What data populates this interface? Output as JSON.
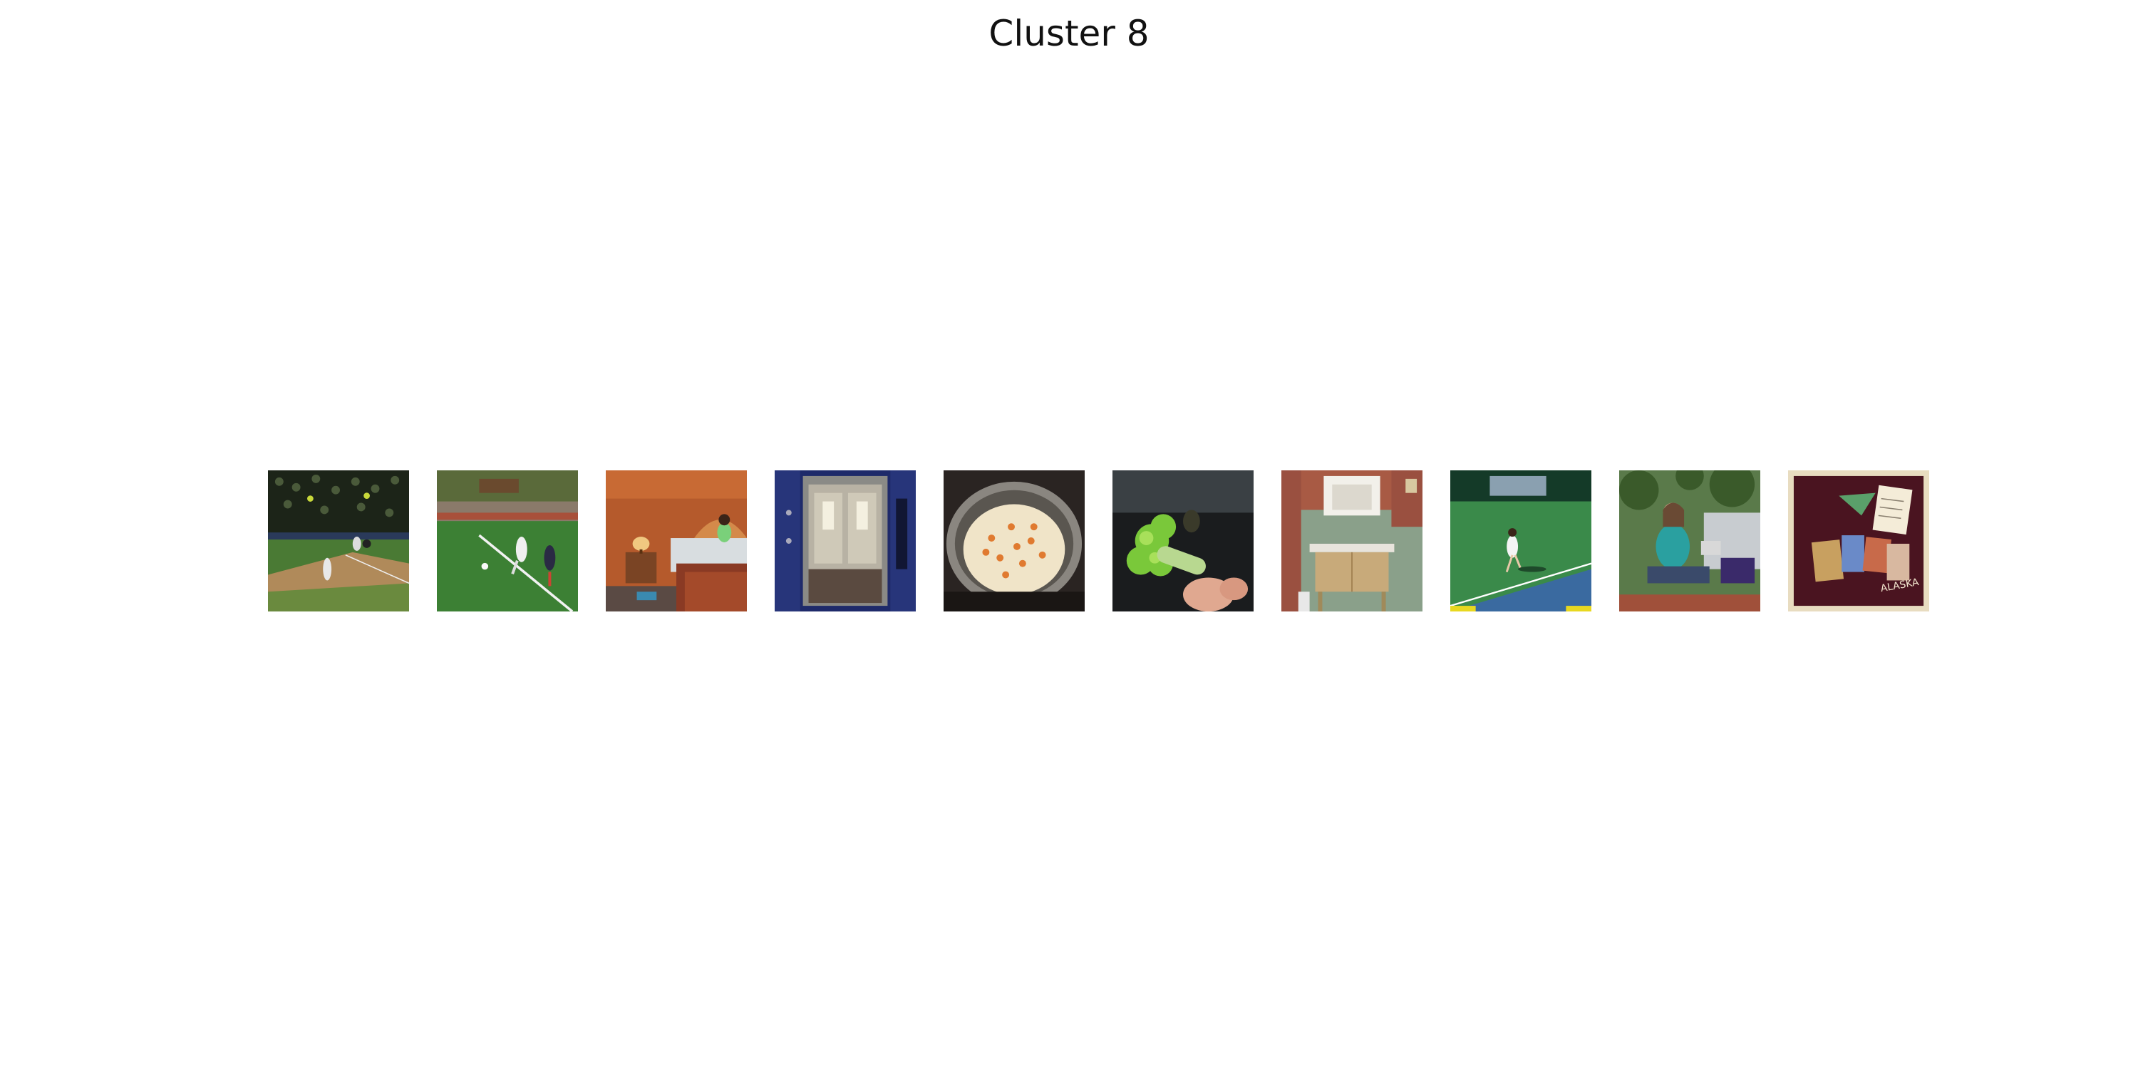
{
  "figure": {
    "title": "Cluster 8"
  },
  "thumbnails": [
    {
      "subject": "baseball game",
      "text": ""
    },
    {
      "subject": "soccer match",
      "text": ""
    },
    {
      "subject": "hotel bedroom",
      "text": ""
    },
    {
      "subject": "train doors",
      "text": ""
    },
    {
      "subject": "rice in pot",
      "text": ""
    },
    {
      "subject": "broccoli in hand",
      "text": ""
    },
    {
      "subject": "bathroom sink",
      "text": ""
    },
    {
      "subject": "tennis court",
      "text": ""
    },
    {
      "subject": "woman on bench",
      "text": ""
    },
    {
      "subject": "alaska suitcase",
      "text": "ALASKA"
    }
  ]
}
